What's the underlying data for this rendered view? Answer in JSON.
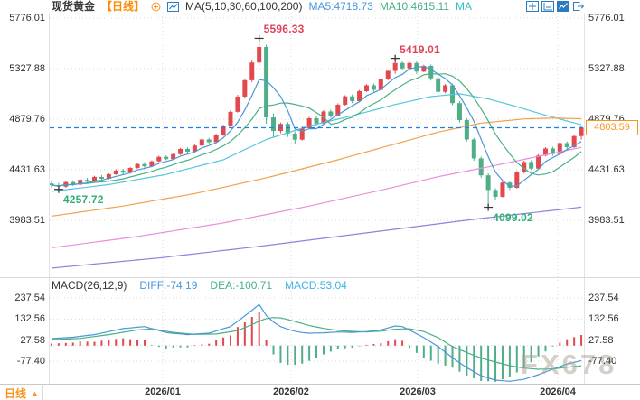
{
  "header": {
    "symbol": "现货黄金",
    "period_tag": "【日线】",
    "indicator_label": "MA(5,10,30,60,100,200)",
    "ma5": "MA5:4718.73",
    "ma10": "MA10:4615.11",
    "ma_more": "MA"
  },
  "toolbar": {
    "icons": [
      "pan-crosshair",
      "axis-scale",
      "line-chart-active",
      "exit-chart"
    ]
  },
  "price_tag": {
    "value": "4803.59"
  },
  "watermark": "FX678",
  "period_selector": {
    "label": "日线",
    "arrow": "▲"
  },
  "macd_header": {
    "params": "MACD(26,12,9)",
    "diff": "DIFF:-74.19",
    "dea": "DEA:-100.71",
    "macd": "MACD:53.04"
  },
  "colors": {
    "up": "#e2484e",
    "down": "#4fae87",
    "ma5": "#4a97d8",
    "ma10": "#49b084",
    "diff_line": "#4a97d8",
    "dea_line": "#49b084",
    "dashed_price": "#1f7fe8",
    "annotation_red": "#e0435a",
    "annotation_green": "#2fae74",
    "price_tag": "#f7941d",
    "grid": "#d8d8d8"
  },
  "chart_data": [
    {
      "type": "candlestick",
      "symbol": "现货黄金",
      "period": "日线",
      "y_ticks": [
        5776.01,
        5327.88,
        4879.76,
        4431.63,
        3983.51
      ],
      "x_labels": [
        "2026/01",
        "2026/02",
        "2026/03",
        "2026/04"
      ],
      "current_price": 4803.59,
      "ma_periods": [
        5,
        10,
        30,
        60,
        100,
        200
      ],
      "ma5_value": 4718.73,
      "ma10_value": 4615.11,
      "annotations": [
        {
          "text": "5596.33",
          "price": 5596.33,
          "index": 29,
          "kind": "high"
        },
        {
          "text": "5419.01",
          "price": 5419.01,
          "index": 48,
          "kind": "high"
        },
        {
          "text": "4257.72",
          "price": 4257.72,
          "index": 1,
          "kind": "low"
        },
        {
          "text": "4099.02",
          "price": 4099.02,
          "index": 61,
          "kind": "low"
        }
      ],
      "candles": [
        [
          4310,
          4330,
          4270,
          4295
        ],
        [
          4295,
          4315,
          4257.72,
          4282
        ],
        [
          4282,
          4330,
          4272,
          4322
        ],
        [
          4322,
          4338,
          4288,
          4300
        ],
        [
          4300,
          4352,
          4292,
          4342
        ],
        [
          4342,
          4360,
          4315,
          4326
        ],
        [
          4326,
          4378,
          4318,
          4368
        ],
        [
          4368,
          4385,
          4340,
          4352
        ],
        [
          4352,
          4400,
          4345,
          4392
        ],
        [
          4392,
          4435,
          4385,
          4424
        ],
        [
          4424,
          4440,
          4392,
          4406
        ],
        [
          4406,
          4455,
          4398,
          4448
        ],
        [
          4448,
          4492,
          4440,
          4482
        ],
        [
          4482,
          4498,
          4450,
          4462
        ],
        [
          4462,
          4515,
          4455,
          4506
        ],
        [
          4506,
          4555,
          4498,
          4546
        ],
        [
          4546,
          4560,
          4515,
          4526
        ],
        [
          4526,
          4580,
          4518,
          4570
        ],
        [
          4570,
          4625,
          4562,
          4616
        ],
        [
          4616,
          4630,
          4580,
          4592
        ],
        [
          4592,
          4655,
          4585,
          4646
        ],
        [
          4646,
          4710,
          4638,
          4700
        ],
        [
          4700,
          4715,
          4665,
          4676
        ],
        [
          4676,
          4750,
          4668,
          4740
        ],
        [
          4740,
          4830,
          4732,
          4818
        ],
        [
          4818,
          4960,
          4810,
          4945
        ],
        [
          4945,
          5095,
          4938,
          5080
        ],
        [
          5080,
          5240,
          5062,
          5225
        ],
        [
          5225,
          5400,
          5208,
          5382
        ],
        [
          5382,
          5596.33,
          5360,
          5520
        ],
        [
          5520,
          5540,
          4840,
          4895
        ],
        [
          4895,
          4930,
          4720,
          4775
        ],
        [
          4775,
          4850,
          4755,
          4838
        ],
        [
          4838,
          4855,
          4722,
          4752
        ],
        [
          4752,
          4770,
          4655,
          4698
        ],
        [
          4698,
          4815,
          4690,
          4800
        ],
        [
          4800,
          4900,
          4792,
          4888
        ],
        [
          4888,
          4905,
          4820,
          4842
        ],
        [
          4842,
          4960,
          4835,
          4948
        ],
        [
          4948,
          4965,
          4890,
          4912
        ],
        [
          4912,
          5020,
          4905,
          5008
        ],
        [
          5008,
          5092,
          5000,
          5082
        ],
        [
          5082,
          5098,
          5022,
          5040
        ],
        [
          5040,
          5140,
          5032,
          5128
        ],
        [
          5128,
          5190,
          5120,
          5180
        ],
        [
          5180,
          5195,
          5122,
          5140
        ],
        [
          5140,
          5242,
          5132,
          5232
        ],
        [
          5232,
          5320,
          5225,
          5308
        ],
        [
          5308,
          5419.01,
          5282,
          5378
        ],
        [
          5378,
          5392,
          5312,
          5330
        ],
        [
          5330,
          5390,
          5322,
          5378
        ],
        [
          5378,
          5392,
          5282,
          5302
        ],
        [
          5302,
          5362,
          5295,
          5352
        ],
        [
          5352,
          5365,
          5222,
          5242
        ],
        [
          5242,
          5258,
          5102,
          5122
        ],
        [
          5122,
          5192,
          5110,
          5180
        ],
        [
          5180,
          5195,
          5005,
          5022
        ],
        [
          5022,
          5040,
          4850,
          4872
        ],
        [
          4872,
          4890,
          4682,
          4700
        ],
        [
          4700,
          4715,
          4512,
          4532
        ],
        [
          4532,
          4548,
          4360,
          4382
        ],
        [
          4382,
          4400,
          4099.02,
          4252
        ],
        [
          4252,
          4268,
          4160,
          4192
        ],
        [
          4192,
          4330,
          4185,
          4318
        ],
        [
          4318,
          4335,
          4252,
          4272
        ],
        [
          4272,
          4420,
          4265,
          4408
        ],
        [
          4408,
          4512,
          4400,
          4500
        ],
        [
          4500,
          4515,
          4428,
          4442
        ],
        [
          4442,
          4570,
          4435,
          4558
        ],
        [
          4558,
          4632,
          4550,
          4620
        ],
        [
          4620,
          4635,
          4555,
          4572
        ],
        [
          4572,
          4680,
          4565,
          4668
        ],
        [
          4668,
          4682,
          4612,
          4632
        ],
        [
          4632,
          4742,
          4625,
          4730
        ],
        [
          4730,
          4820,
          4700,
          4803.59
        ]
      ],
      "overlays": [
        {
          "name": "MA30",
          "color": "#56c7dd",
          "points": [
            [
              0,
              4240
            ],
            [
              8,
              4300
            ],
            [
              16,
              4390
            ],
            [
              24,
              4520
            ],
            [
              30,
              4700
            ],
            [
              36,
              4820
            ],
            [
              42,
              4910
            ],
            [
              48,
              5010
            ],
            [
              53,
              5080
            ],
            [
              57,
              5105
            ],
            [
              61,
              5060
            ],
            [
              65,
              4990
            ],
            [
              69,
              4915
            ],
            [
              74,
              4830
            ]
          ]
        },
        {
          "name": "MA60",
          "color": "#f2a14d",
          "points": [
            [
              0,
              4020
            ],
            [
              10,
              4110
            ],
            [
              20,
              4220
            ],
            [
              30,
              4360
            ],
            [
              40,
              4520
            ],
            [
              48,
              4660
            ],
            [
              54,
              4765
            ],
            [
              60,
              4845
            ],
            [
              66,
              4882
            ],
            [
              70,
              4890
            ],
            [
              74,
              4884
            ]
          ]
        },
        {
          "name": "MA100",
          "color": "#e98fd9",
          "points": [
            [
              0,
              3740
            ],
            [
              12,
              3840
            ],
            [
              24,
              3960
            ],
            [
              36,
              4110
            ],
            [
              46,
              4250
            ],
            [
              54,
              4370
            ],
            [
              62,
              4470
            ],
            [
              68,
              4550
            ],
            [
              74,
              4630
            ]
          ]
        },
        {
          "name": "MA200",
          "color": "#8a85dc",
          "points": [
            [
              0,
              3560
            ],
            [
              15,
              3650
            ],
            [
              30,
              3760
            ],
            [
              45,
              3880
            ],
            [
              60,
              4000
            ],
            [
              74,
              4100
            ]
          ]
        }
      ]
    },
    {
      "type": "macd",
      "params": [
        26,
        12,
        9
      ],
      "diff": -74.19,
      "dea": -100.71,
      "macd": 53.04,
      "histogram_rule": "2*(diff-dea)",
      "y_ticks": [
        237.54,
        132.56,
        27.58,
        -77.4
      ],
      "diff_points": [
        [
          0,
          35
        ],
        [
          3,
          42
        ],
        [
          6,
          55
        ],
        [
          10,
          85
        ],
        [
          13,
          95
        ],
        [
          16,
          65
        ],
        [
          19,
          55
        ],
        [
          22,
          62
        ],
        [
          25,
          95
        ],
        [
          27,
          148
        ],
        [
          29,
          205
        ],
        [
          30,
          150
        ],
        [
          31,
          118
        ],
        [
          32,
          95
        ],
        [
          33,
          82
        ],
        [
          34,
          72
        ],
        [
          35,
          65
        ],
        [
          36,
          62
        ],
        [
          38,
          64
        ],
        [
          40,
          68
        ],
        [
          42,
          66
        ],
        [
          44,
          70
        ],
        [
          46,
          78
        ],
        [
          48,
          98
        ],
        [
          49,
          95
        ],
        [
          50,
          78
        ],
        [
          52,
          40
        ],
        [
          54,
          -5
        ],
        [
          56,
          -60
        ],
        [
          58,
          -110
        ],
        [
          60,
          -150
        ],
        [
          62,
          -172
        ],
        [
          64,
          -178
        ],
        [
          66,
          -168
        ],
        [
          68,
          -145
        ],
        [
          70,
          -118
        ],
        [
          72,
          -92
        ],
        [
          74,
          -74.19
        ]
      ],
      "dea_points": [
        [
          0,
          30
        ],
        [
          4,
          36
        ],
        [
          8,
          55
        ],
        [
          12,
          78
        ],
        [
          14,
          84
        ],
        [
          17,
          66
        ],
        [
          20,
          56
        ],
        [
          23,
          58
        ],
        [
          26,
          75
        ],
        [
          28,
          105
        ],
        [
          29,
          122
        ],
        [
          30,
          135
        ],
        [
          31,
          140
        ],
        [
          32,
          138
        ],
        [
          33,
          130
        ],
        [
          34,
          120
        ],
        [
          35,
          110
        ],
        [
          36,
          100
        ],
        [
          38,
          86
        ],
        [
          40,
          76
        ],
        [
          42,
          71
        ],
        [
          44,
          68
        ],
        [
          46,
          72
        ],
        [
          48,
          82
        ],
        [
          50,
          84
        ],
        [
          52,
          70
        ],
        [
          54,
          40
        ],
        [
          56,
          -5
        ],
        [
          58,
          -35
        ],
        [
          60,
          -62
        ],
        [
          62,
          -82
        ],
        [
          64,
          -100
        ],
        [
          66,
          -112
        ],
        [
          68,
          -118
        ],
        [
          70,
          -116
        ],
        [
          72,
          -108
        ],
        [
          74,
          -100.71
        ]
      ]
    }
  ]
}
